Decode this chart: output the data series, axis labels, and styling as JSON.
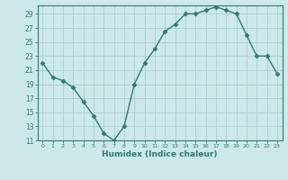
{
  "x": [
    0,
    1,
    2,
    3,
    4,
    5,
    6,
    7,
    8,
    9,
    10,
    11,
    12,
    13,
    14,
    15,
    16,
    17,
    18,
    19,
    20,
    21,
    22,
    23
  ],
  "y": [
    22,
    20,
    19.5,
    18.5,
    16.5,
    14.5,
    12,
    11,
    13,
    19,
    22,
    24,
    26.5,
    27.5,
    29,
    29,
    29.5,
    30,
    29.5,
    29,
    26,
    23,
    23,
    20.5
  ],
  "line_color": "#2e7b6e",
  "marker_color": "#2e7b6e",
  "bg_color": "#cce8e8",
  "grid_color": "#aacfcf",
  "xlabel": "Humidex (Indice chaleur)",
  "ylim_min": 11,
  "ylim_max": 30,
  "yticks": [
    11,
    13,
    15,
    17,
    19,
    21,
    23,
    25,
    27,
    29
  ],
  "xticks": [
    0,
    1,
    2,
    3,
    4,
    5,
    6,
    7,
    8,
    9,
    10,
    11,
    12,
    13,
    14,
    15,
    16,
    17,
    18,
    19,
    20,
    21,
    22,
    23
  ],
  "label_color": "#2e7b6e",
  "tick_color": "#2e7b6e",
  "axis_color": "#2e7b6e"
}
